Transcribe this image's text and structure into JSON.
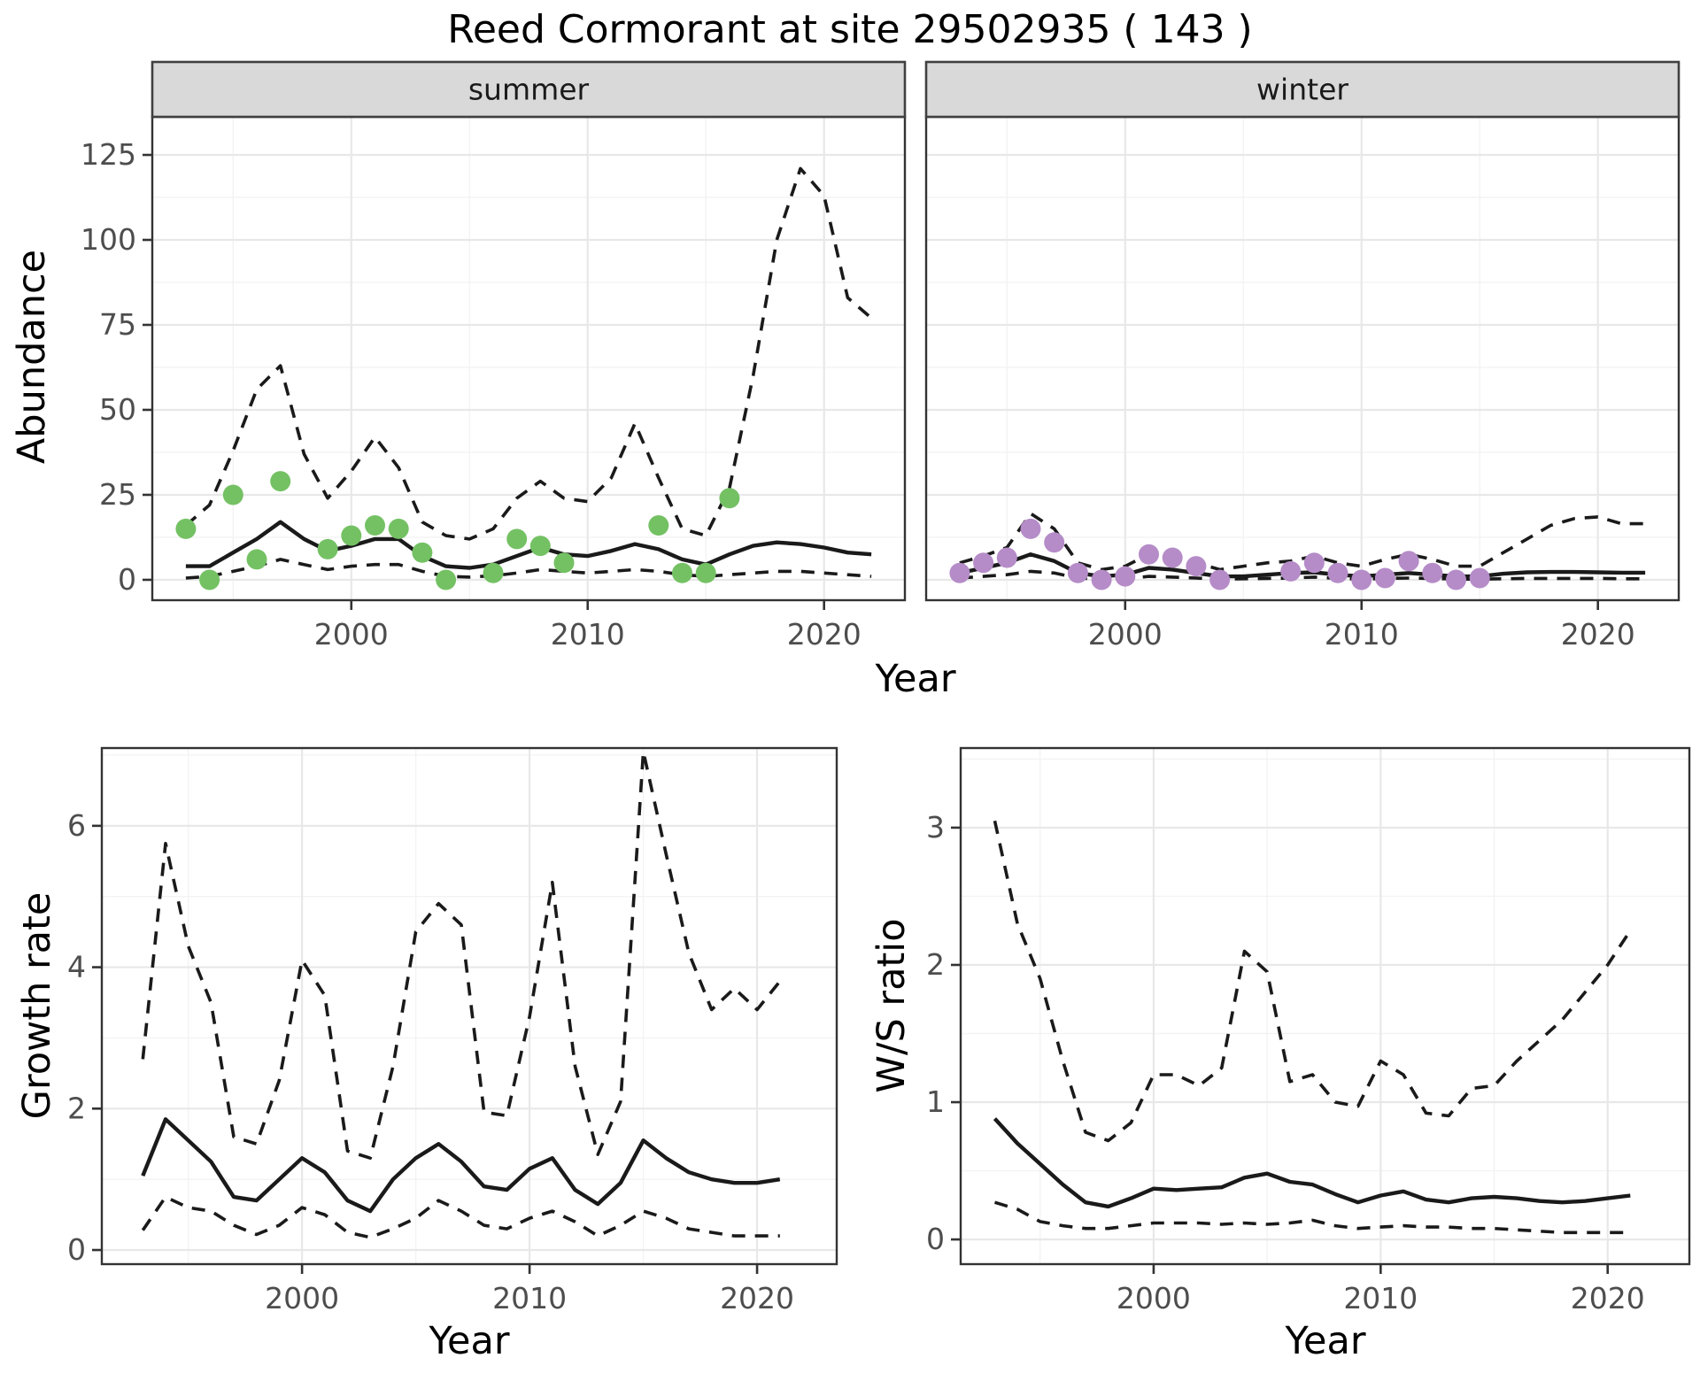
{
  "title": "Reed Cormorant at site 29502935 ( 143 )",
  "top_chart": {
    "ylabel": "Abundance",
    "xlabel": "Year",
    "facets": [
      "summer",
      "winter"
    ]
  },
  "growth_chart": {
    "ylabel": "Growth rate",
    "xlabel": "Year"
  },
  "ws_chart": {
    "ylabel": "W/S ratio",
    "xlabel": "Year"
  },
  "colors": {
    "summer_point": "#74c164",
    "winter_point": "#b58cc8",
    "line": "#1a1a1a",
    "grid_major": "#e8e8e8",
    "grid_minor": "#f3f3f3",
    "strip_bg": "#d9d9d9",
    "strip_border": "#404040",
    "panel_border": "#333333",
    "tick_mark": "#333333",
    "tick_text": "#4d4d4d"
  },
  "chart_data": [
    {
      "id": "abundance-summer",
      "type": "line",
      "title": "summer facet: modelled abundance with 95% CI and observed counts",
      "xlabel": "Year",
      "ylabel": "Abundance",
      "xlim": [
        1991.58,
        2023.42
      ],
      "ylim": [
        -6,
        136.2
      ],
      "x_ticks": [
        2000,
        2010,
        2020
      ],
      "y_ticks": [
        0,
        25,
        50,
        75,
        100,
        125
      ],
      "x_minor": [
        1995,
        2005,
        2015
      ],
      "y_minor": [
        12.5,
        37.5,
        62.5,
        87.5,
        112.5
      ],
      "x": [
        1993,
        1994,
        1995,
        1996,
        1997,
        1998,
        1999,
        2000,
        2001,
        2002,
        2003,
        2004,
        2005,
        2006,
        2007,
        2008,
        2009,
        2010,
        2011,
        2012,
        2013,
        2014,
        2015,
        2016,
        2017,
        2018,
        2019,
        2020,
        2021,
        2022
      ],
      "series": [
        {
          "name": "median",
          "style": "solid",
          "values": [
            4,
            4,
            8,
            12,
            17,
            12,
            8.5,
            10,
            12,
            12,
            7,
            4,
            3.5,
            4.5,
            7,
            9.5,
            7.5,
            7,
            8.5,
            10.5,
            9,
            6,
            4.5,
            7.5,
            10,
            11,
            10.5,
            9.5,
            8,
            7.5
          ]
        },
        {
          "name": "upper_ci",
          "style": "dashed",
          "values": [
            16,
            22,
            38,
            56,
            63,
            37,
            24,
            32,
            42,
            33,
            17,
            13,
            12,
            15,
            24,
            29,
            24,
            23,
            30,
            46,
            30,
            15,
            13,
            27,
            60,
            100,
            121,
            113,
            83,
            77
          ]
        },
        {
          "name": "lower_ci",
          "style": "dashed",
          "values": [
            0.5,
            1,
            2.5,
            4,
            6,
            4.5,
            3,
            4,
            4.5,
            4.5,
            2.5,
            1,
            0.8,
            1.2,
            2,
            3,
            2.5,
            2,
            2.5,
            3,
            2.5,
            1.5,
            1,
            1.5,
            2,
            2.5,
            2.5,
            2,
            1.5,
            1
          ]
        }
      ],
      "points": {
        "name": "observed_counts",
        "color_key": "summer_point",
        "data": [
          [
            1993,
            15
          ],
          [
            1994,
            0
          ],
          [
            1995,
            25
          ],
          [
            1996,
            6
          ],
          [
            1997,
            29
          ],
          [
            1999,
            9
          ],
          [
            2000,
            13
          ],
          [
            2001,
            16
          ],
          [
            2002,
            15
          ],
          [
            2003,
            8
          ],
          [
            2004,
            0
          ],
          [
            2006,
            2
          ],
          [
            2007,
            12
          ],
          [
            2008,
            10
          ],
          [
            2009,
            5
          ],
          [
            2013,
            16
          ],
          [
            2014,
            2
          ],
          [
            2015,
            2
          ],
          [
            2016,
            24
          ]
        ]
      }
    },
    {
      "id": "abundance-winter",
      "type": "line",
      "title": "winter facet: modelled abundance with 95% CI and observed counts",
      "xlabel": "Year",
      "ylabel": "Abundance",
      "xlim": [
        1991.58,
        2023.42
      ],
      "ylim": [
        -6,
        136.2
      ],
      "x_ticks": [
        2000,
        2010,
        2020
      ],
      "y_ticks": [
        0,
        25,
        50,
        75,
        100,
        125
      ],
      "x_minor": [
        1995,
        2005,
        2015
      ],
      "y_minor": [
        12.5,
        37.5,
        62.5,
        87.5,
        112.5
      ],
      "x": [
        1993,
        1994,
        1995,
        1996,
        1997,
        1998,
        1999,
        2000,
        2001,
        2002,
        2003,
        2004,
        2005,
        2006,
        2007,
        2008,
        2009,
        2010,
        2011,
        2012,
        2013,
        2014,
        2015,
        2016,
        2017,
        2018,
        2019,
        2020,
        2021,
        2022
      ],
      "series": [
        {
          "name": "median",
          "style": "solid",
          "values": [
            2,
            3.5,
            5,
            7.5,
            5.5,
            2,
            1,
            1.5,
            3.5,
            3,
            2,
            1,
            1,
            1.5,
            2,
            2.2,
            1.5,
            1,
            1.5,
            2,
            1.5,
            1,
            1,
            1.8,
            2.2,
            2.3,
            2.3,
            2.2,
            2.1,
            2.1
          ]
        },
        {
          "name": "upper_ci",
          "style": "dashed",
          "values": [
            5,
            7,
            9.5,
            19.5,
            15,
            5,
            3,
            4,
            7.5,
            7,
            5,
            3,
            4,
            5,
            5.5,
            7,
            5,
            4,
            6,
            7.5,
            6,
            4,
            4,
            8,
            12,
            16,
            18,
            18.5,
            16.5,
            16.5
          ]
        },
        {
          "name": "lower_ci",
          "style": "dashed",
          "values": [
            0.5,
            1,
            1.5,
            2.5,
            2,
            0.5,
            0.2,
            0.3,
            1,
            0.8,
            0.5,
            0.2,
            0.3,
            0.4,
            0.5,
            0.8,
            0.4,
            0.2,
            0.4,
            0.5,
            0.4,
            0.2,
            0.2,
            0.3,
            0.4,
            0.4,
            0.4,
            0.4,
            0.3,
            0.3
          ]
        }
      ],
      "points": {
        "name": "observed_counts",
        "color_key": "winter_point",
        "data": [
          [
            1993,
            2
          ],
          [
            1994,
            5
          ],
          [
            1995,
            6.5
          ],
          [
            1996,
            15
          ],
          [
            1997,
            11
          ],
          [
            1998,
            2
          ],
          [
            1999,
            0
          ],
          [
            2000,
            1
          ],
          [
            2001,
            7.5
          ],
          [
            2002,
            6.5
          ],
          [
            2003,
            4
          ],
          [
            2004,
            0
          ],
          [
            2007,
            2.5
          ],
          [
            2008,
            5
          ],
          [
            2009,
            2
          ],
          [
            2010,
            0
          ],
          [
            2011,
            0.5
          ],
          [
            2012,
            5.5
          ],
          [
            2013,
            2
          ],
          [
            2014,
            0
          ],
          [
            2015,
            0.5
          ]
        ]
      }
    },
    {
      "id": "growth-rate",
      "type": "line",
      "title": "Growth rate with 95% CI",
      "xlabel": "Year",
      "ylabel": "Growth rate",
      "xlim": [
        1991.2,
        2023.5
      ],
      "ylim": [
        -0.2,
        7.1
      ],
      "x_ticks": [
        2000,
        2010,
        2020
      ],
      "y_ticks": [
        0,
        2,
        4,
        6
      ],
      "x_minor": [
        1995,
        2005,
        2015
      ],
      "y_minor": [
        1,
        3,
        5,
        7
      ],
      "x": [
        1993,
        1994,
        1995,
        1996,
        1997,
        1998,
        1999,
        2000,
        2001,
        2002,
        2003,
        2004,
        2005,
        2006,
        2007,
        2008,
        2009,
        2010,
        2011,
        2012,
        2013,
        2014,
        2015,
        2016,
        2017,
        2018,
        2019,
        2020,
        2021
      ],
      "series": [
        {
          "name": "median",
          "style": "solid",
          "values": [
            1.05,
            1.85,
            1.55,
            1.25,
            0.75,
            0.7,
            1.0,
            1.3,
            1.1,
            0.7,
            0.55,
            1.0,
            1.3,
            1.5,
            1.25,
            0.9,
            0.85,
            1.15,
            1.3,
            0.85,
            0.65,
            0.95,
            1.55,
            1.3,
            1.1,
            1.0,
            0.95,
            0.95,
            1.0
          ]
        },
        {
          "name": "upper_ci",
          "style": "dashed",
          "values": [
            2.7,
            5.75,
            4.3,
            3.5,
            1.6,
            1.5,
            2.4,
            4.1,
            3.6,
            1.4,
            1.3,
            2.6,
            4.5,
            4.9,
            4.6,
            1.95,
            1.9,
            3.3,
            5.2,
            2.6,
            1.35,
            2.1,
            7.05,
            5.6,
            4.2,
            3.4,
            3.7,
            3.4,
            3.8
          ]
        },
        {
          "name": "lower_ci",
          "style": "dashed",
          "values": [
            0.28,
            0.75,
            0.6,
            0.55,
            0.35,
            0.22,
            0.35,
            0.6,
            0.5,
            0.25,
            0.18,
            0.3,
            0.45,
            0.7,
            0.55,
            0.35,
            0.3,
            0.45,
            0.55,
            0.4,
            0.2,
            0.35,
            0.55,
            0.45,
            0.3,
            0.25,
            0.2,
            0.2,
            0.2
          ]
        }
      ],
      "points": null
    },
    {
      "id": "ws-ratio",
      "type": "line",
      "title": "Winter/Summer ratio with 95% CI",
      "xlabel": "Year",
      "ylabel": "W/S ratio",
      "xlim": [
        1991.5,
        2023.6
      ],
      "ylim": [
        -0.18,
        3.58
      ],
      "x_ticks": [
        2000,
        2010,
        2020
      ],
      "y_ticks": [
        0,
        1,
        2,
        3
      ],
      "x_minor": [
        1995,
        2005,
        2015
      ],
      "y_minor": [
        0.5,
        1.5,
        2.5,
        3.5
      ],
      "x": [
        1993,
        1994,
        1995,
        1996,
        1997,
        1998,
        1999,
        2000,
        2001,
        2002,
        2003,
        2004,
        2005,
        2006,
        2007,
        2008,
        2009,
        2010,
        2011,
        2012,
        2013,
        2014,
        2015,
        2016,
        2017,
        2018,
        2019,
        2020,
        2021
      ],
      "series": [
        {
          "name": "median",
          "style": "solid",
          "values": [
            0.88,
            0.7,
            0.55,
            0.4,
            0.27,
            0.24,
            0.3,
            0.37,
            0.36,
            0.37,
            0.38,
            0.45,
            0.48,
            0.42,
            0.4,
            0.33,
            0.27,
            0.32,
            0.35,
            0.29,
            0.27,
            0.3,
            0.31,
            0.3,
            0.28,
            0.27,
            0.28,
            0.3,
            0.32
          ]
        },
        {
          "name": "upper_ci",
          "style": "dashed",
          "values": [
            3.05,
            2.3,
            1.9,
            1.3,
            0.78,
            0.72,
            0.85,
            1.2,
            1.2,
            1.12,
            1.25,
            2.1,
            1.95,
            1.15,
            1.2,
            1.0,
            0.97,
            1.3,
            1.2,
            0.92,
            0.9,
            1.1,
            1.12,
            1.3,
            1.45,
            1.6,
            1.8,
            2.0,
            2.25
          ]
        },
        {
          "name": "lower_ci",
          "style": "dashed",
          "values": [
            0.27,
            0.22,
            0.13,
            0.1,
            0.08,
            0.08,
            0.1,
            0.12,
            0.12,
            0.12,
            0.11,
            0.12,
            0.11,
            0.12,
            0.14,
            0.1,
            0.08,
            0.09,
            0.1,
            0.09,
            0.09,
            0.08,
            0.08,
            0.07,
            0.06,
            0.05,
            0.05,
            0.05,
            0.05
          ]
        }
      ],
      "points": null
    }
  ]
}
